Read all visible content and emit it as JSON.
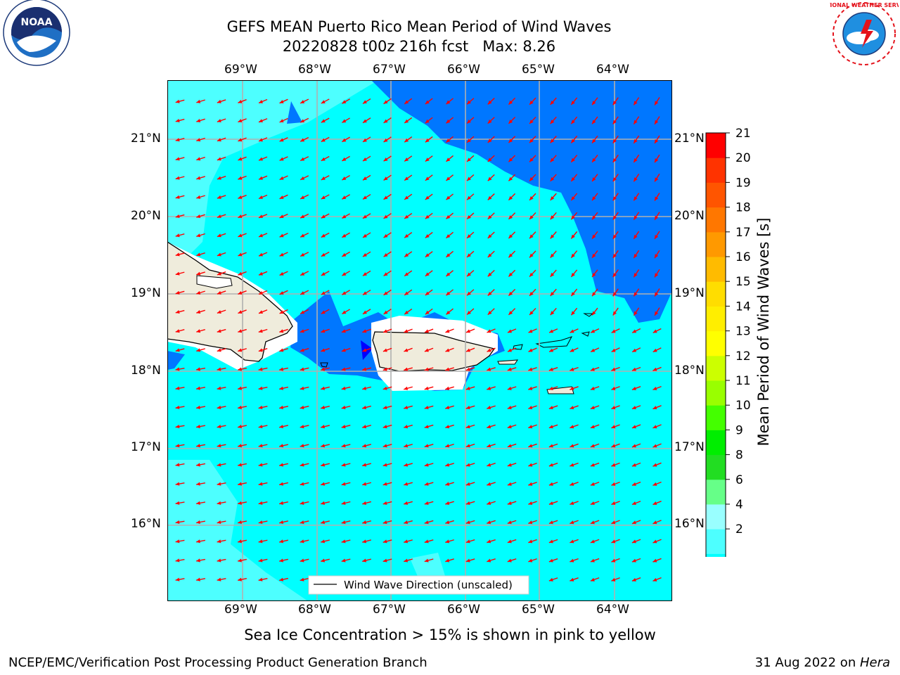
{
  "title_line1": "GEFS MEAN Puerto Rico Mean Period of Wind Waves",
  "title_line2": "20220828 t00z 216h fcst   Max: 8.26",
  "logo_left_text": "NOAA",
  "logo_left_ring": "NATIONAL OCEANIC AND ATMOSPHERIC ADMINISTRATION · U.S. DEPARTMENT OF COMMERCE",
  "logo_right_ring": "NATIONAL WEATHER SERVICE",
  "map": {
    "lon_labels": [
      "69°W",
      "68°W",
      "67°W",
      "66°W",
      "65°W",
      "64°W"
    ],
    "lat_labels": [
      "21°N",
      "20°N",
      "19°N",
      "18°N",
      "17°N",
      "16°N"
    ],
    "legend_label": "Wind Wave Direction (unscaled)",
    "arrow_color": "#ff0000",
    "land_color": "#efecdc"
  },
  "colorbar": {
    "label": "Mean Period of Wind Waves [s]",
    "ticks": [
      "21",
      "20",
      "19",
      "18",
      "17",
      "16",
      "15",
      "14",
      "13",
      "12",
      "11",
      "10",
      "9",
      "8",
      "6",
      "4",
      "2"
    ],
    "colors": [
      "#0000ff",
      "#0077ff",
      "#00ffff",
      "#4dffff",
      "#99ffff",
      "#66ff88",
      "#22dd22",
      "#00ee00",
      "#44ff00",
      "#99ff00",
      "#ccff00",
      "#ffff00",
      "#ffee00",
      "#ffdd00",
      "#ffbb00",
      "#ff9900",
      "#ff7700",
      "#ff5500",
      "#ff3300",
      "#ff0000"
    ]
  },
  "sea_ice_note": "Sea Ice Concentration > 15% is shown in pink to yellow",
  "footer_left": "NCEP/EMC/Verification Post Processing Product Generation Branch",
  "footer_right_date": "31 Aug 2022 on ",
  "footer_right_host": "Hera"
}
